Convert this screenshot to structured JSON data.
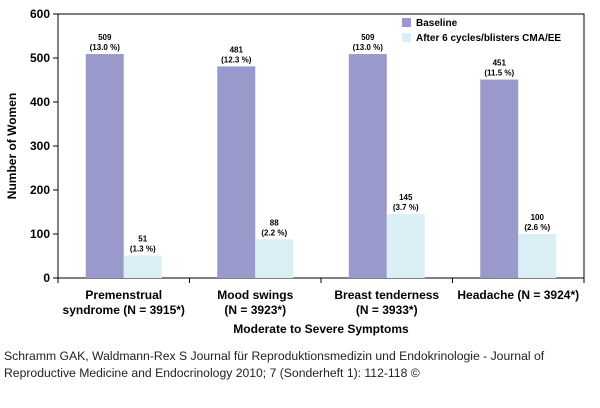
{
  "chart_data": {
    "type": "bar",
    "categories": [
      [
        "Premenstrual",
        "syndrome (N = 3915*)"
      ],
      [
        "Mood swings",
        "(N = 3923*)"
      ],
      [
        "Breast tenderness",
        "(N = 3933*)"
      ],
      [
        "Headache (N = 3924*)"
      ]
    ],
    "series": [
      {
        "name": "Baseline",
        "color": "#9999cc",
        "values": [
          509,
          481,
          509,
          451
        ],
        "labels": [
          [
            "509",
            "(13.0 %)"
          ],
          [
            "481",
            "(12.3 %)"
          ],
          [
            "509",
            "(13.0 %)"
          ],
          [
            "451",
            "(11.5 %)"
          ]
        ]
      },
      {
        "name": "After 6 cycles/blisters CMA/EE",
        "color": "#d9eef5",
        "values": [
          51,
          88,
          145,
          100
        ],
        "labels": [
          [
            "51",
            "(1.3 %)"
          ],
          [
            "88",
            "(2.2 %)"
          ],
          [
            "145",
            "(3.7 %)"
          ],
          [
            "100",
            "(2.6 %)"
          ]
        ]
      }
    ],
    "title": "",
    "xlabel": "Moderate to Severe Symptoms",
    "ylabel": "Number  of Women",
    "ylim": [
      0,
      600
    ],
    "yticks": [
      0,
      100,
      200,
      300,
      400,
      500,
      600
    ],
    "grid": false,
    "legend_position": "top-right"
  },
  "caption": "Schramm GAK, Waldmann-Rex S Journal für Reproduktionsmedizin und Endokrinologie - Journal of Reproductive Medicine and Endocrinology 2010; 7 (Sonderheft 1): 112-118 ©"
}
